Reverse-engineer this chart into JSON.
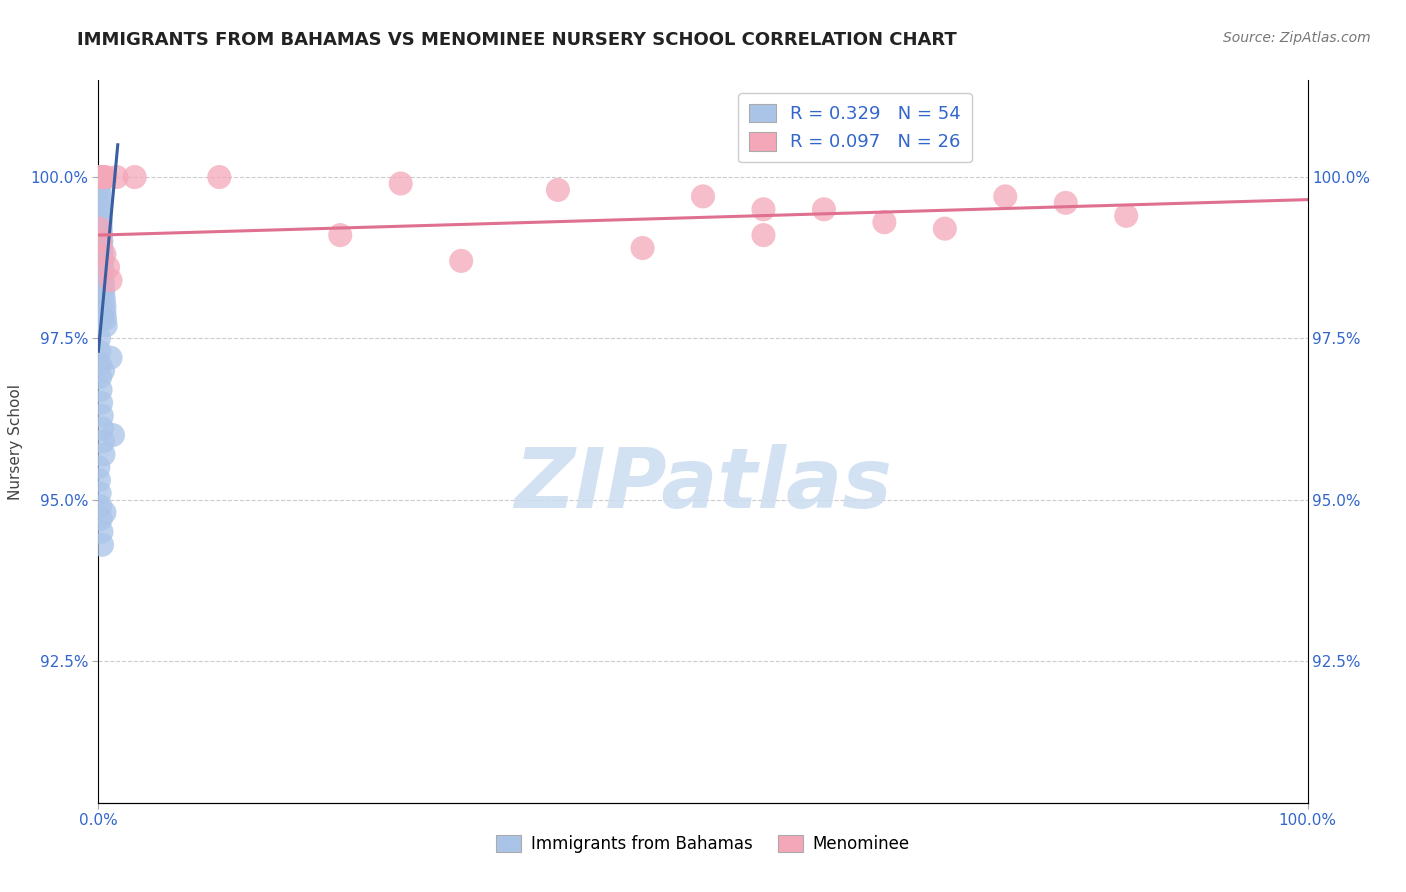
{
  "title": "IMMIGRANTS FROM BAHAMAS VS MENOMINEE NURSERY SCHOOL CORRELATION CHART",
  "source_text": "Source: ZipAtlas.com",
  "ylabel": "Nursery School",
  "y_tick_values": [
    92.5,
    95.0,
    97.5,
    100.0
  ],
  "xlim": [
    0.0,
    100.0
  ],
  "ylim": [
    90.3,
    101.5
  ],
  "legend_entries": [
    {
      "label": "R = 0.329   N = 54",
      "color": "#aac4e8"
    },
    {
      "label": "R = 0.097   N = 26",
      "color": "#f4a7b9"
    }
  ],
  "legend2_labels": [
    "Immigrants from Bahamas",
    "Menominee"
  ],
  "legend2_colors": [
    "#aac4e8",
    "#f4a7b9"
  ],
  "blue_scatter_x": [
    0.0,
    0.0,
    0.0,
    0.05,
    0.05,
    0.08,
    0.08,
    0.1,
    0.1,
    0.12,
    0.15,
    0.15,
    0.18,
    0.2,
    0.2,
    0.22,
    0.25,
    0.25,
    0.28,
    0.3,
    0.3,
    0.35,
    0.35,
    0.4,
    0.4,
    0.45,
    0.5,
    0.5,
    0.55,
    0.6,
    0.05,
    0.08,
    0.12,
    0.15,
    0.18,
    0.22,
    0.28,
    0.32,
    0.38,
    0.42,
    0.0,
    0.05,
    0.1,
    0.15,
    0.2,
    0.25,
    0.3,
    0.5,
    1.0,
    1.2,
    0.08,
    0.18,
    0.28,
    0.38
  ],
  "blue_scatter_y": [
    100.0,
    100.0,
    100.0,
    100.0,
    100.0,
    100.0,
    100.0,
    99.9,
    99.8,
    99.7,
    99.6,
    99.5,
    99.4,
    99.3,
    99.2,
    99.1,
    99.0,
    98.9,
    98.8,
    98.7,
    98.6,
    98.5,
    98.4,
    98.3,
    98.2,
    98.1,
    98.0,
    97.9,
    97.8,
    97.7,
    97.5,
    97.3,
    97.1,
    96.9,
    96.7,
    96.5,
    96.3,
    96.1,
    95.9,
    95.7,
    95.5,
    95.3,
    95.1,
    94.9,
    94.7,
    94.5,
    94.3,
    94.8,
    97.2,
    96.0,
    99.0,
    98.5,
    97.8,
    97.0
  ],
  "pink_scatter_x": [
    0.05,
    0.3,
    0.4,
    0.6,
    1.5,
    3.0,
    10.0,
    25.0,
    38.0,
    50.0,
    55.0,
    60.0,
    65.0,
    75.0,
    80.0,
    0.1,
    0.2,
    0.5,
    0.8,
    1.0,
    20.0,
    30.0,
    45.0,
    55.0,
    70.0,
    85.0
  ],
  "pink_scatter_y": [
    100.0,
    100.0,
    100.0,
    100.0,
    100.0,
    100.0,
    100.0,
    99.9,
    99.8,
    99.7,
    99.5,
    99.5,
    99.3,
    99.7,
    99.6,
    99.2,
    99.0,
    98.8,
    98.6,
    98.4,
    99.1,
    98.7,
    98.9,
    99.1,
    99.2,
    99.4
  ],
  "blue_line": {
    "x": [
      0.0,
      1.6
    ],
    "y": [
      97.3,
      100.5
    ]
  },
  "pink_line": {
    "x": [
      0.0,
      100.0
    ],
    "y": [
      99.1,
      99.65
    ]
  },
  "blue_color": "#3a5fa0",
  "pink_color": "#e07090",
  "blue_scatter_color": "#aac4e8",
  "pink_scatter_color": "#f4a7b9",
  "grid_color": "#cccccc",
  "background_color": "#ffffff",
  "title_fontsize": 13,
  "axis_label_color": "#3366cc",
  "ylabel_color": "#444444",
  "watermark_text": "ZIPatlas",
  "watermark_color": "#ccddf0",
  "watermark_fontsize": 60
}
